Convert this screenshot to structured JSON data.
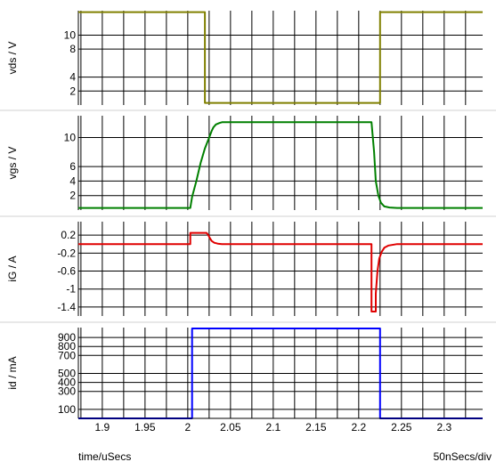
{
  "chart_data": [
    {
      "type": "line",
      "ylabel": "vds / V",
      "ylim": [
        0,
        13.5
      ],
      "yticks": [
        2,
        4,
        8,
        10
      ],
      "color": "#808000",
      "series": [
        {
          "x": [
            1.872,
            2.02,
            2.02,
            2.225,
            2.225,
            2.345
          ],
          "y": [
            13.3,
            13.3,
            0.3,
            0.3,
            13.3,
            13.3
          ]
        }
      ]
    },
    {
      "type": "line",
      "ylabel": "vgs / V",
      "ylim": [
        0,
        13
      ],
      "yticks": [
        2,
        4,
        6,
        10
      ],
      "color": "#008000",
      "series": [
        {
          "x": [
            1.872,
            2.003,
            2.005,
            2.01,
            2.015,
            2.02,
            2.025,
            2.028,
            2.03,
            2.033,
            2.037,
            2.04,
            2.05,
            2.215,
            2.218,
            2.22,
            2.223,
            2.226,
            2.23,
            2.236,
            2.245,
            2.345
          ],
          "y": [
            0.3,
            0.3,
            1.8,
            4.0,
            6.5,
            8.5,
            10.0,
            10.9,
            11.4,
            11.8,
            12.0,
            12.1,
            12.1,
            12.1,
            8.0,
            4.0,
            2.0,
            1.0,
            0.5,
            0.35,
            0.3,
            0.3
          ]
        }
      ]
    },
    {
      "type": "line",
      "ylabel": "iG / A",
      "ylim": [
        -1.6,
        0.5
      ],
      "yticks": [
        0.2,
        -0.2,
        -0.6,
        -1,
        -1.4
      ],
      "color": "#e00000",
      "series": [
        {
          "x": [
            1.872,
            2.003,
            2.003,
            2.022,
            2.024,
            2.026,
            2.028,
            2.031,
            2.035,
            2.04,
            2.05,
            2.215,
            2.215,
            2.22,
            2.22,
            2.222,
            2.224,
            2.227,
            2.23,
            2.235,
            2.245,
            2.345
          ],
          "y": [
            0,
            0,
            0.25,
            0.25,
            0.2,
            0.13,
            0.07,
            0.03,
            0.01,
            0,
            0,
            0,
            -1.5,
            -1.5,
            -1.1,
            -0.6,
            -0.32,
            -0.17,
            -0.08,
            -0.03,
            0,
            0
          ]
        }
      ]
    },
    {
      "type": "line",
      "ylabel": "id / mA",
      "ylim": [
        0,
        1010
      ],
      "yticks": [
        100,
        300,
        400,
        500,
        700,
        800,
        900
      ],
      "color": "#0000ff",
      "series": [
        {
          "x": [
            1.872,
            2.005,
            2.005,
            2.225,
            2.225,
            2.345
          ],
          "y": [
            0,
            0,
            1000,
            1000,
            0,
            0
          ]
        }
      ]
    }
  ],
  "x_axis": {
    "range": [
      1.872,
      2.345
    ],
    "major_ticks": [
      1.9,
      1.95,
      2,
      2.05,
      2.1,
      2.15,
      2.2,
      2.25,
      2.3
    ],
    "tick_labels": [
      "1.9",
      "1.95",
      "2",
      "2.05",
      "2.1",
      "2.15",
      "2.2",
      "2.25",
      "2.3"
    ],
    "label": "time/uSecs",
    "scale_note": "50nSecs/div"
  },
  "grid": true
}
